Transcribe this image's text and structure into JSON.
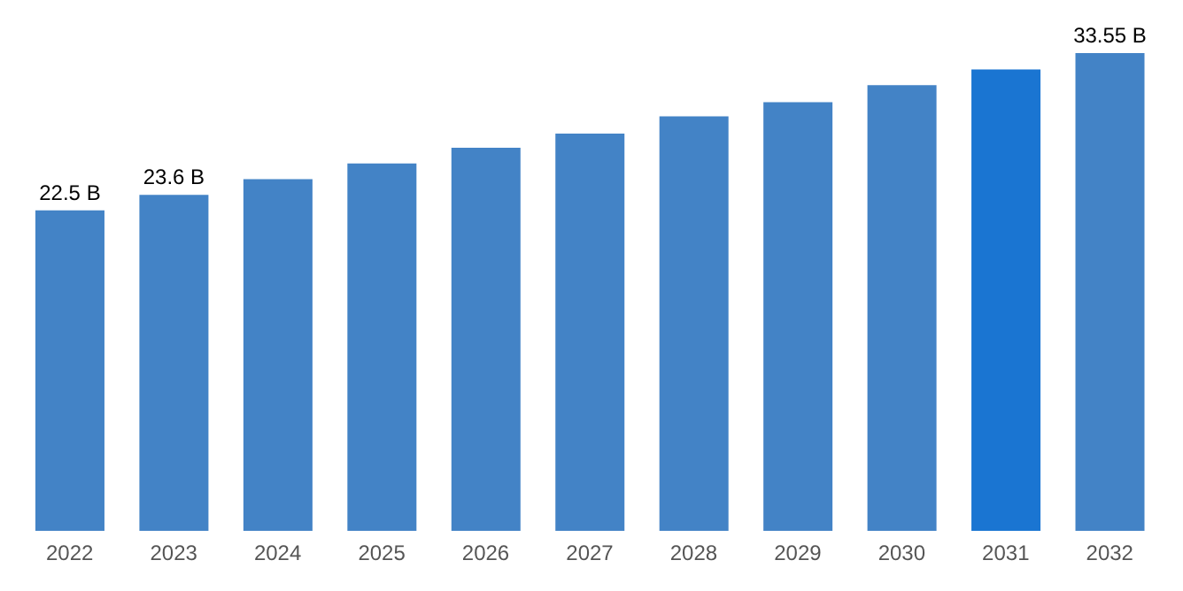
{
  "chart_data": {
    "type": "bar",
    "categories": [
      "2022",
      "2023",
      "2024",
      "2025",
      "2026",
      "2027",
      "2028",
      "2029",
      "2030",
      "2031",
      "2032"
    ],
    "values": [
      22.5,
      23.6,
      24.7,
      25.8,
      26.9,
      27.9,
      29.1,
      30.1,
      31.3,
      32.4,
      33.55
    ],
    "colors": [
      "#4383c6",
      "#4383c6",
      "#4383c6",
      "#4383c6",
      "#4383c6",
      "#4383c6",
      "#4383c6",
      "#4383c6",
      "#4383c6",
      "#1a75d2",
      "#4383c6"
    ],
    "value_labels": [
      "22.5 B",
      "23.6 B",
      null,
      null,
      null,
      null,
      null,
      null,
      null,
      null,
      "33.55 B"
    ]
  }
}
